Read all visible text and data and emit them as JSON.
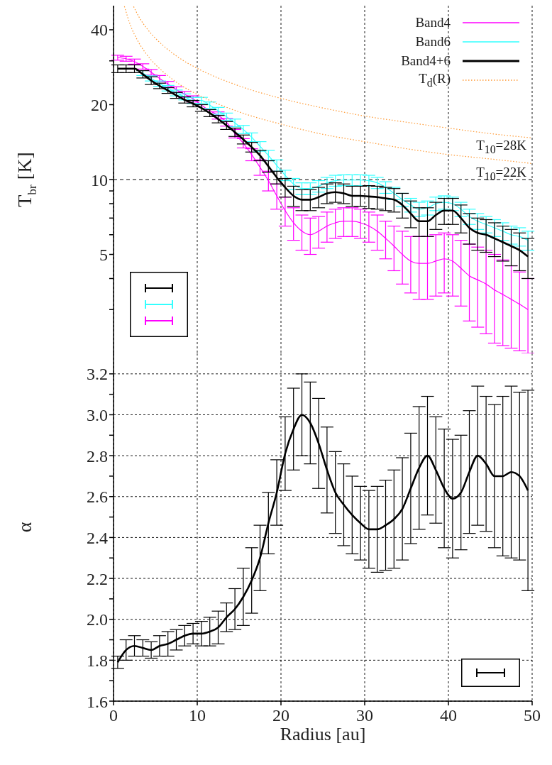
{
  "chart_data": [
    {
      "type": "line",
      "ylabel": "T$_{br}$ [K]",
      "log": true,
      "grid": "x",
      "legend": "top right",
      "tick_labels": "y",
      "xlim": [
        0,
        50
      ],
      "xticks": [
        0,
        10,
        20,
        30,
        40,
        50
      ],
      "ylim": [
        2,
        50
      ],
      "yticks": [
        {
          "value": 3,
          "label": null
        },
        {
          "value": 4,
          "label": null
        },
        5,
        {
          "value": 6,
          "label": null
        },
        {
          "value": 7,
          "label": null
        },
        {
          "value": 8,
          "label": null
        },
        {
          "value": 9,
          "label": null
        },
        10,
        20,
        {
          "value": 30,
          "label": null
        },
        40
      ],
      "x": [
        0.5,
        1.5,
        2.5,
        3.5,
        4.5,
        5.5,
        6.5,
        7.5,
        8.5,
        9.5,
        10.5,
        11.5,
        12.5,
        13.5,
        14.5,
        15.5,
        16.5,
        17.5,
        18.5,
        19.5,
        20.5,
        21.5,
        22.5,
        23.5,
        24.5,
        25.5,
        26.5,
        27.5,
        28.5,
        29.5,
        30.5,
        31.5,
        32.5,
        33.5,
        34.5,
        35.5,
        36.5,
        37.5,
        38.5,
        39.5,
        40.5,
        41.5,
        42.5,
        43.5,
        44.5,
        45.5,
        46.5,
        47.5,
        48.5,
        49.5
      ],
      "series": [
        {
          "name": "Band4",
          "color": "#ff00ff",
          "values": [
            30.9,
            30.6,
            29.8,
            28.5,
            27.0,
            25.5,
            24.2,
            23.0,
            22.0,
            21.1,
            19.9,
            18.9,
            18.1,
            17.0,
            15.3,
            14.0,
            12.6,
            11.2,
            9.9,
            8.6,
            7.5,
            6.7,
            6.2,
            6.0,
            6.2,
            6.5,
            6.7,
            6.8,
            6.8,
            6.7,
            6.5,
            6.2,
            5.8,
            5.4,
            5.0,
            4.7,
            4.6,
            4.6,
            4.7,
            4.8,
            4.7,
            4.4,
            4.1,
            3.95,
            3.8,
            3.6,
            3.45,
            3.3,
            3.15,
            3.0
          ],
          "errors": [
            0.7,
            0.7,
            0.7,
            0.7,
            0.7,
            0.7,
            0.6,
            0.6,
            0.6,
            0.6,
            null,
            null,
            0.6,
            0.6,
            0.6,
            0.6,
            0.7,
            0.8,
            0.9,
            1.0,
            1.0,
            1.0,
            1.0,
            1.0,
            0.9,
            0.9,
            0.9,
            0.9,
            0.9,
            0.9,
            0.9,
            1.0,
            1.0,
            1.1,
            1.2,
            1.2,
            1.3,
            1.3,
            1.3,
            1.3,
            1.3,
            1.3,
            1.4,
            1.4,
            1.4,
            1.4,
            1.3,
            1.2,
            1.1,
            1.0
          ]
        },
        {
          "name": "Band6",
          "color": "#33ffff",
          "values": [
            null,
            null,
            null,
            26.8,
            25.5,
            24.3,
            23.3,
            22.3,
            21.5,
            20.8,
            20.8,
            19.9,
            18.9,
            17.9,
            16.9,
            15.9,
            14.8,
            13.6,
            12.5,
            11.4,
            10.4,
            9.6,
            9.2,
            9.2,
            9.4,
            9.7,
            9.9,
            9.95,
            9.95,
            9.95,
            9.9,
            9.7,
            9.3,
            8.8,
            8.3,
            7.9,
            7.6,
            7.7,
            8.0,
            8.1,
            8.0,
            7.6,
            7.1,
            6.8,
            6.6,
            6.4,
            6.2,
            6.0,
            5.9,
            5.7
          ],
          "errors": [
            null,
            null,
            null,
            0.6,
            0.6,
            0.6,
            0.6,
            0.6,
            0.6,
            0.6,
            0.6,
            0.6,
            0.6,
            0.6,
            0.6,
            0.6,
            0.6,
            0.6,
            0.6,
            0.6,
            0.5,
            0.5,
            0.5,
            0.5,
            0.5,
            0.5,
            0.5,
            0.5,
            0.5,
            0.5,
            0.5,
            0.5,
            0.5,
            0.5,
            0.5,
            0.5,
            0.5,
            0.5,
            0.5,
            0.5,
            0.5,
            0.5,
            0.5,
            0.5,
            0.5,
            0.5,
            0.5,
            0.5,
            0.5,
            0.5
          ]
        },
        {
          "name": "Band4+6",
          "color": "#000000",
          "values": [
            27.9,
            27.9,
            27.9,
            26.5,
            25.0,
            23.8,
            22.8,
            21.8,
            20.9,
            20.2,
            19.4,
            18.5,
            17.5,
            16.5,
            15.5,
            14.5,
            13.5,
            12.5,
            11.3,
            10.2,
            9.3,
            8.6,
            8.3,
            8.3,
            8.5,
            8.8,
            8.9,
            8.8,
            8.6,
            8.6,
            8.55,
            8.5,
            8.4,
            8.3,
            7.9,
            7.3,
            6.8,
            6.8,
            7.2,
            7.5,
            7.5,
            7.0,
            6.4,
            6.1,
            6.0,
            5.8,
            5.6,
            5.4,
            5.2,
            4.9
          ],
          "errors": [
            1.0,
            1.0,
            1.0,
            0.9,
            0.9,
            0.6,
            0.6,
            0.6,
            0.6,
            0.6,
            0.6,
            0.6,
            0.6,
            0.6,
            0.6,
            0.6,
            0.6,
            0.6,
            0.6,
            0.6,
            0.8,
            0.8,
            0.8,
            0.8,
            0.8,
            0.8,
            0.8,
            0.8,
            0.8,
            0.8,
            0.9,
            0.9,
            0.9,
            0.9,
            0.9,
            0.9,
            0.9,
            0.9,
            0.9,
            0.9,
            0.9,
            0.9,
            0.9,
            0.9,
            0.9,
            0.9,
            0.9,
            0.9,
            0.9,
            0.9
          ]
        },
        {
          "name": "T$_{d}$(R)",
          "color": "#ff9933",
          "line_style": "dotted",
          "x": [
            2.4,
            3,
            4,
            5,
            6,
            8,
            10,
            15,
            20,
            25,
            30,
            35,
            40,
            45,
            50
          ],
          "values": [
            49.6,
            45.3,
            40.4,
            37.0,
            34.4,
            30.6,
            28.0,
            23.8,
            21.2,
            19.4,
            18.0,
            17.0,
            16.1,
            15.3,
            14.7
          ]
        },
        {
          "color": "#ff9933",
          "line_style": "dotted",
          "x": [
            1.3,
            2,
            3,
            4,
            5,
            6,
            8,
            10,
            15,
            20,
            25,
            30,
            35,
            40,
            45,
            50
          ],
          "values": [
            49.7,
            41.9,
            35.6,
            31.7,
            29.0,
            27.0,
            24.0,
            22.0,
            18.7,
            16.7,
            15.2,
            14.2,
            13.3,
            12.6,
            12.1,
            11.6
          ]
        }
      ],
      "ref_lines": [
        {
          "axis": "y",
          "value": 10,
          "color": "#000000",
          "line_style": "dashed"
        }
      ],
      "annotations": [
        "T$_{10}$=28K",
        "T$_{10}$=22K"
      ]
    },
    {
      "type": "line",
      "ylabel": "α",
      "xlabel": "Radius [au]",
      "grid": true,
      "xlim": [
        0,
        50
      ],
      "xticks": [
        0,
        10,
        20,
        30,
        40,
        50
      ],
      "ylim": [
        1.6,
        3.3
      ],
      "yticks": [
        1.6,
        {
          "value": 1.7,
          "label": null
        },
        1.8,
        {
          "value": 1.9,
          "label": null
        },
        {
          "value": 2,
          "label": "2.0"
        },
        {
          "value": 2.1,
          "label": null
        },
        2.2,
        {
          "value": 2.3,
          "label": null
        },
        2.4,
        {
          "value": 2.5,
          "label": null
        },
        2.6,
        {
          "value": 2.7,
          "label": null
        },
        2.8,
        {
          "value": 2.9,
          "label": null
        },
        {
          "value": 3,
          "label": "3.0"
        },
        {
          "value": 3.1,
          "label": null
        },
        3.2
      ],
      "x": [
        0.5,
        1.5,
        2.5,
        3.5,
        4.5,
        5.5,
        6.5,
        7.5,
        8.5,
        9.5,
        10.5,
        11.5,
        12.5,
        13.5,
        14.5,
        15.5,
        16.5,
        17.5,
        18.5,
        19.5,
        20.5,
        21.5,
        22.5,
        23.5,
        24.5,
        25.5,
        26.5,
        27.5,
        28.5,
        29.5,
        30.5,
        31.5,
        32.5,
        33.5,
        34.5,
        35.5,
        36.5,
        37.5,
        38.5,
        39.5,
        40.5,
        41.5,
        42.5,
        43.5,
        44.5,
        45.5,
        46.5,
        47.5,
        48.5,
        49.5
      ],
      "series": [
        {
          "color": "#000000",
          "values": [
            1.79,
            1.85,
            1.87,
            1.86,
            1.85,
            1.87,
            1.88,
            1.9,
            1.92,
            1.93,
            1.93,
            1.94,
            1.96,
            2.01,
            2.05,
            2.11,
            2.19,
            2.3,
            2.47,
            2.62,
            2.81,
            2.93,
            3.0,
            2.96,
            2.86,
            2.73,
            2.62,
            2.56,
            2.51,
            2.47,
            2.44,
            2.44,
            2.46,
            2.49,
            2.54,
            2.64,
            2.74,
            2.8,
            2.73,
            2.64,
            2.59,
            2.62,
            2.72,
            2.8,
            2.76,
            2.7,
            2.7,
            2.72,
            2.7,
            2.63
          ],
          "errors": [
            0.03,
            0.05,
            0.05,
            0.04,
            0.04,
            0.05,
            0.06,
            0.05,
            0.05,
            0.05,
            0.06,
            0.07,
            0.08,
            0.07,
            0.1,
            0.14,
            0.16,
            0.16,
            0.15,
            0.16,
            0.18,
            0.2,
            0.2,
            0.2,
            0.22,
            0.21,
            0.2,
            0.2,
            0.19,
            0.18,
            0.19,
            0.21,
            0.22,
            0.24,
            0.25,
            0.27,
            0.3,
            0.29,
            0.26,
            0.29,
            0.29,
            0.28,
            0.3,
            0.34,
            0.33,
            0.35,
            0.39,
            0.42,
            0.41,
            0.49
          ]
        }
      ]
    }
  ]
}
